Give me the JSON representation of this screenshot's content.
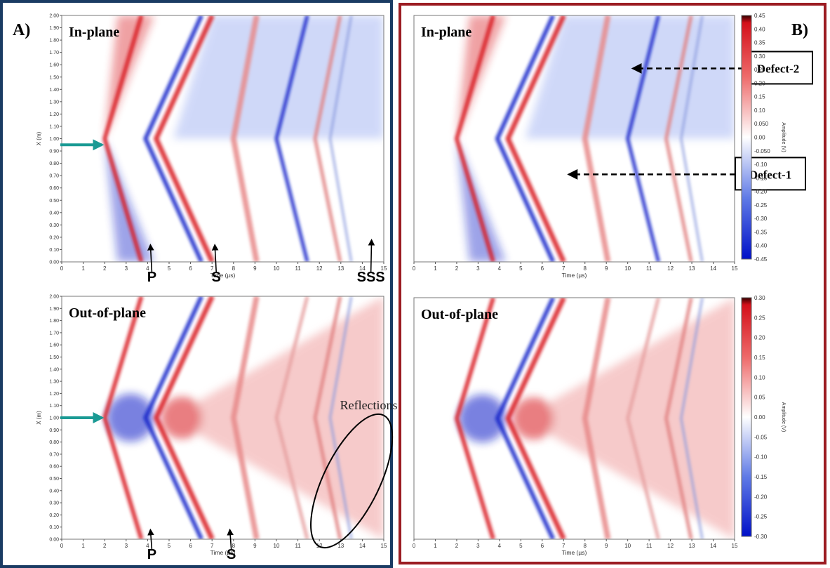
{
  "panel_a": {
    "label": "A)",
    "in_plane": {
      "title": "In-plane",
      "xlabel": "Time (µs)",
      "ylabel": "X (m)",
      "wave_labels": [
        "P",
        "S",
        "SSS"
      ]
    },
    "out_of_plane": {
      "title": "Out-of-plane",
      "xlabel": "Time (µs)",
      "ylabel": "X (m)",
      "wave_labels": [
        "P",
        "S"
      ],
      "annotation": "Reflections"
    }
  },
  "panel_b": {
    "label": "B)",
    "in_plane": {
      "title": "In-plane",
      "xlabel": "Time (µs)",
      "defect_labels": [
        "Defect-2",
        "Defect-1"
      ],
      "colorbar_label": "Amplitude (V)"
    },
    "out_of_plane": {
      "title": "Out-of-plane",
      "xlabel": "Time (µs)",
      "colorbar_label": "Amplitude (V)"
    }
  },
  "colors": {
    "positive": "#d8141c",
    "negative": "#0a1ec8",
    "neutral": "#ffffff",
    "panel_a_border": "#1a3b63",
    "panel_b_border": "#9b1c22",
    "source_arrow": "#1a9a94"
  },
  "chart_data": [
    {
      "type": "heatmap",
      "id": "A-in-plane",
      "title": "In-plane",
      "xlabel": "Time (µs)",
      "ylabel": "X (m)",
      "xlim": [
        0,
        15
      ],
      "ylim": [
        0,
        2
      ],
      "x_ticks": [
        "0",
        "1",
        "2",
        "3",
        "4",
        "5",
        "6",
        "7",
        "8",
        "9",
        "10",
        "11",
        "12",
        "13",
        "14",
        "15"
      ],
      "y_ticks": [
        "0.00",
        "0.10",
        "0.20",
        "0.30",
        "0.40",
        "0.50",
        "0.60",
        "0.70",
        "0.80",
        "0.90",
        "1.00",
        "1.10",
        "1.20",
        "1.30",
        "1.40",
        "1.50",
        "1.60",
        "1.70",
        "1.80",
        "1.90",
        "2.00"
      ],
      "source": {
        "t": 2,
        "x": 0.95
      },
      "wave_labels": [
        {
          "text": "P",
          "t": 4.0,
          "x": 0.16
        },
        {
          "text": "S",
          "t": 7.0,
          "x": 0.16
        },
        {
          "text": "SSS",
          "t": 14.3,
          "x": 0.2
        }
      ]
    },
    {
      "type": "heatmap",
      "id": "A-out-of-plane",
      "title": "Out-of-plane",
      "xlabel": "Time (µs)",
      "ylabel": "X (m)",
      "xlim": [
        0,
        15
      ],
      "ylim": [
        0,
        2
      ],
      "x_ticks": [
        "0",
        "1",
        "2",
        "3",
        "4",
        "5",
        "6",
        "7",
        "8",
        "9",
        "10",
        "11",
        "12",
        "13",
        "14",
        "15"
      ],
      "y_ticks": [
        "0.00",
        "0.10",
        "0.20",
        "0.30",
        "0.40",
        "0.50",
        "0.60",
        "0.70",
        "0.80",
        "0.90",
        "1.00",
        "1.10",
        "1.20",
        "1.30",
        "1.40",
        "1.50",
        "1.60",
        "1.70",
        "1.80",
        "1.90",
        "2.00"
      ],
      "source": {
        "t": 2,
        "x": 1.0
      },
      "wave_labels": [
        {
          "text": "P",
          "t": 4.0,
          "x": 0.1
        },
        {
          "text": "S",
          "t": 7.7,
          "x": 0.1
        }
      ],
      "annotation": "Reflections"
    },
    {
      "type": "heatmap",
      "id": "B-in-plane",
      "title": "In-plane",
      "xlabel": "Time (µs)",
      "xlim": [
        0,
        15
      ],
      "ylim": [
        0,
        2
      ],
      "x_ticks": [
        "0",
        "1",
        "2",
        "3",
        "4",
        "5",
        "6",
        "7",
        "8",
        "9",
        "10",
        "11",
        "12",
        "13",
        "14",
        "15"
      ],
      "colorbar": {
        "label": "Amplitude (V)",
        "range": [
          -0.45,
          0.45
        ],
        "ticks": [
          "-0.45",
          "-0.40",
          "-0.35",
          "-0.30",
          "-0.25",
          "-0.20",
          "-0.15",
          "-0.10",
          "-0.050",
          "0.00",
          "0.050",
          "0.10",
          "0.15",
          "0.20",
          "0.25",
          "0.30",
          "0.35",
          "0.40",
          "0.45"
        ]
      },
      "defects": [
        {
          "text": "Defect-2",
          "t": 10.0,
          "x": 1.57
        },
        {
          "text": "Defect-1",
          "t": 7.0,
          "x": 0.71
        }
      ]
    },
    {
      "type": "heatmap",
      "id": "B-out-of-plane",
      "title": "Out-of-plane",
      "xlabel": "Time (µs)",
      "xlim": [
        0,
        15
      ],
      "ylim": [
        0,
        2
      ],
      "x_ticks": [
        "0",
        "1",
        "2",
        "3",
        "4",
        "5",
        "6",
        "7",
        "8",
        "9",
        "10",
        "11",
        "12",
        "13",
        "14",
        "15"
      ],
      "colorbar": {
        "label": "Amplitude (V)",
        "range": [
          -0.3,
          0.3
        ],
        "ticks": [
          "-0.30",
          "-0.25",
          "-0.20",
          "-0.15",
          "-0.10",
          "-0.05",
          "0.00",
          "0.05",
          "0.10",
          "0.15",
          "0.20",
          "0.25",
          "0.30"
        ]
      }
    }
  ]
}
